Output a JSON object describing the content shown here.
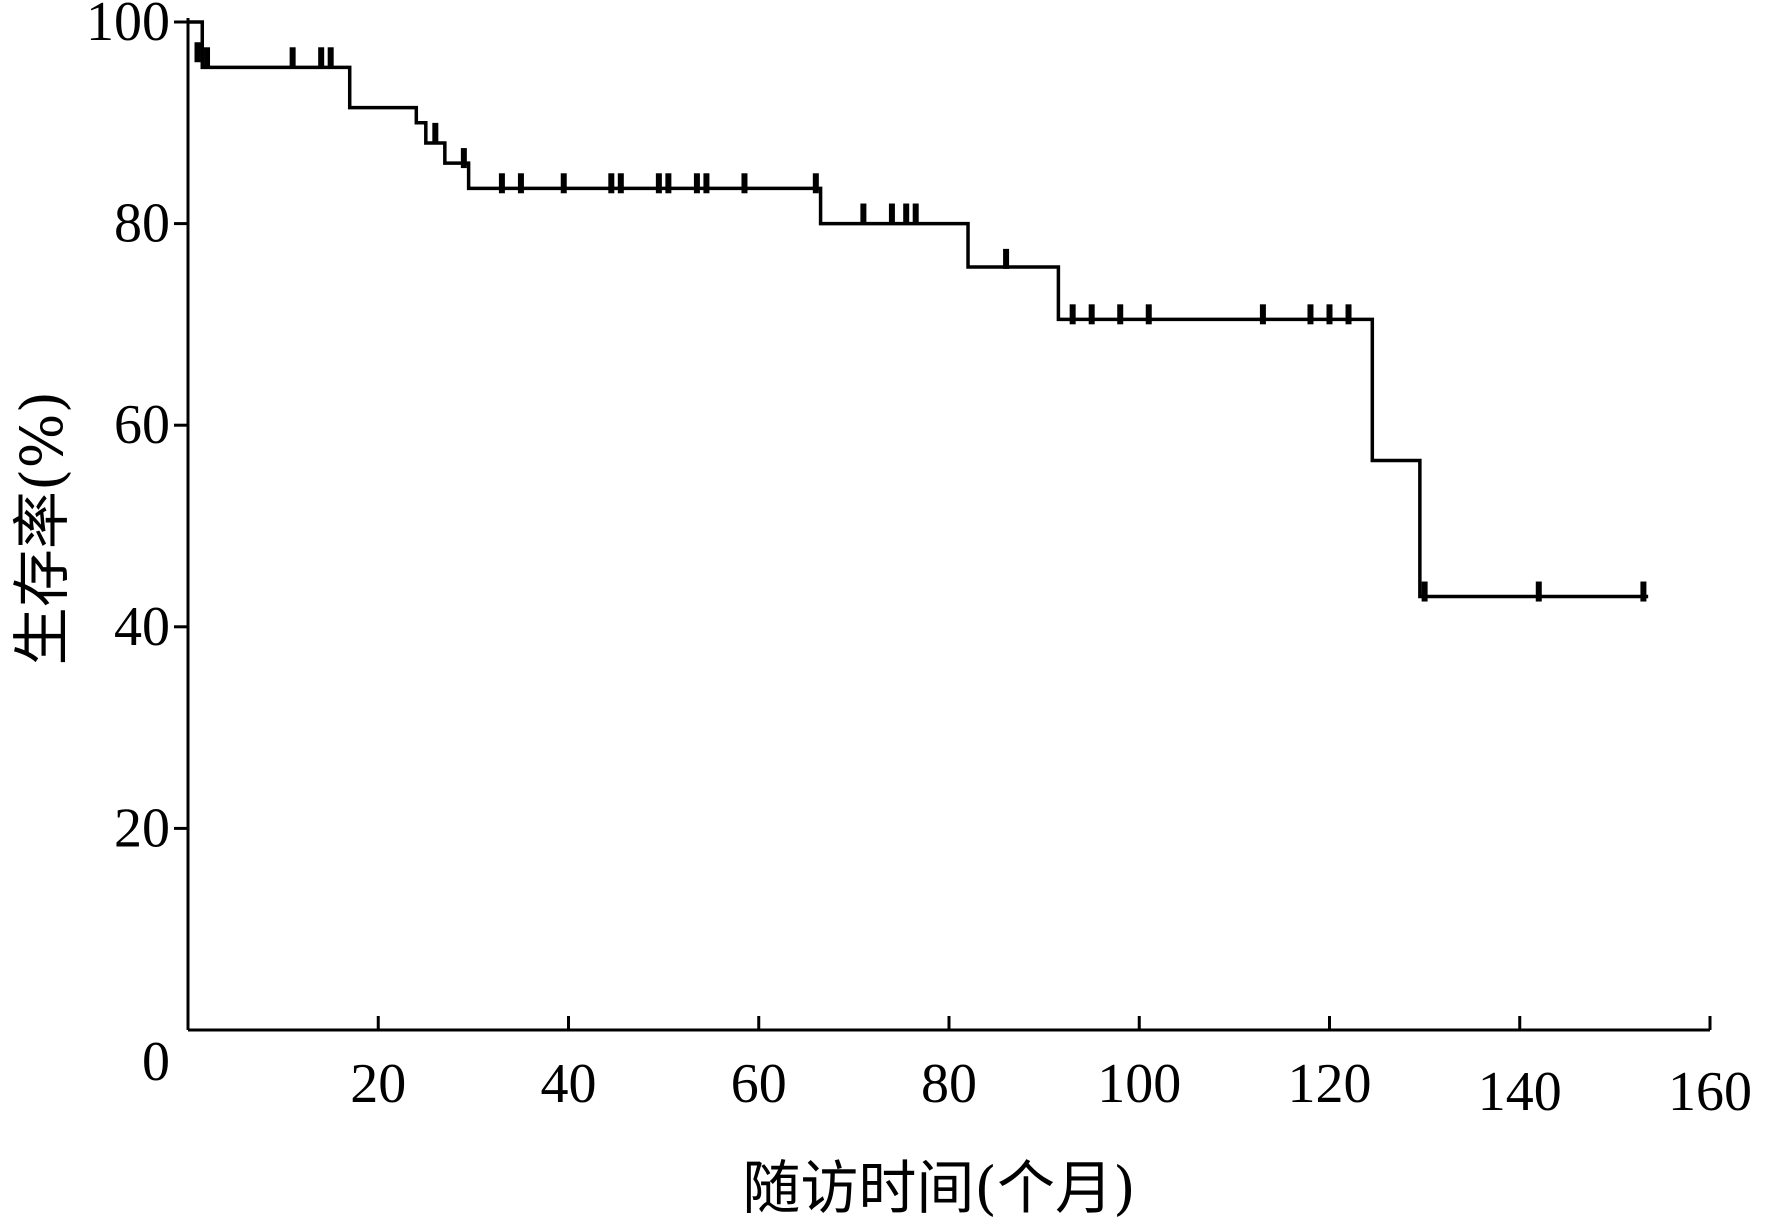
{
  "chart_data": {
    "type": "line",
    "xlabel": "随访时间(个月)",
    "ylabel": "生存率(%)",
    "xlim": [
      0,
      160
    ],
    "ylim": [
      0,
      100
    ],
    "x_ticks": [
      0,
      20,
      40,
      60,
      80,
      100,
      120,
      140,
      160
    ],
    "y_ticks": [
      0,
      20,
      40,
      60,
      80,
      100
    ],
    "x_tick_labels": [
      "20",
      "40",
      "60",
      "80",
      "100",
      "120",
      "140",
      "160"
    ],
    "y_tick_labels": [
      "0",
      "20",
      "40",
      "60",
      "80",
      "100"
    ],
    "grid": false,
    "series": [
      {
        "style": "step",
        "color": "#000000",
        "x": [
          0,
          1.5,
          17,
          24,
          25,
          27,
          29.5,
          66.5,
          82,
          91.5,
          124.5,
          129.5,
          153.5
        ],
        "y": [
          100,
          95.5,
          91.5,
          90,
          88,
          86,
          83.5,
          80,
          75.7,
          70.5,
          56.5,
          43,
          43
        ],
        "censored": [
          {
            "x": 1,
            "y": 97
          },
          {
            "x": 2,
            "y": 96.5
          },
          {
            "x": 11,
            "y": 96.5
          },
          {
            "x": 14,
            "y": 96.5
          },
          {
            "x": 15,
            "y": 96.5
          },
          {
            "x": 26,
            "y": 89
          },
          {
            "x": 29,
            "y": 86.5
          },
          {
            "x": 33,
            "y": 84
          },
          {
            "x": 35,
            "y": 84
          },
          {
            "x": 39.5,
            "y": 84
          },
          {
            "x": 44.5,
            "y": 84
          },
          {
            "x": 45.5,
            "y": 84
          },
          {
            "x": 49.5,
            "y": 84
          },
          {
            "x": 50.5,
            "y": 84
          },
          {
            "x": 53.5,
            "y": 84
          },
          {
            "x": 54.5,
            "y": 84
          },
          {
            "x": 58.5,
            "y": 84
          },
          {
            "x": 66,
            "y": 84
          },
          {
            "x": 71,
            "y": 81
          },
          {
            "x": 74,
            "y": 81
          },
          {
            "x": 75.5,
            "y": 81
          },
          {
            "x": 76.5,
            "y": 81
          },
          {
            "x": 86,
            "y": 76.5
          },
          {
            "x": 93,
            "y": 71
          },
          {
            "x": 95,
            "y": 71
          },
          {
            "x": 98,
            "y": 71
          },
          {
            "x": 101,
            "y": 71
          },
          {
            "x": 113,
            "y": 71
          },
          {
            "x": 118,
            "y": 71
          },
          {
            "x": 120,
            "y": 71
          },
          {
            "x": 122,
            "y": 71
          },
          {
            "x": 130,
            "y": 43.5
          },
          {
            "x": 142,
            "y": 43.5
          },
          {
            "x": 153,
            "y": 43.5
          }
        ]
      }
    ]
  }
}
